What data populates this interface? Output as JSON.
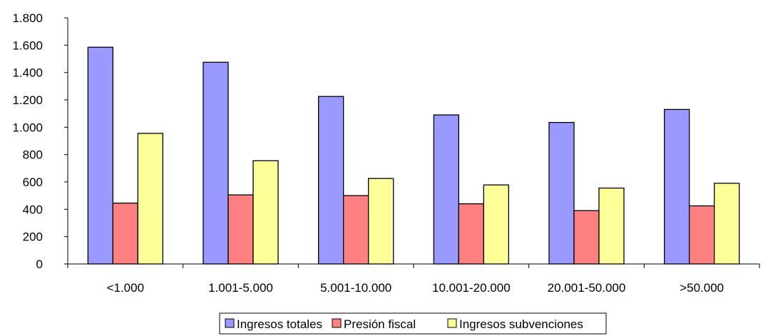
{
  "chart_data": {
    "type": "bar",
    "categories": [
      "<1.000",
      "1.001-5.000",
      "5.001-10.000",
      "10.001-20.000",
      "20.001-50.000",
      ">50.000"
    ],
    "series": [
      {
        "name": "Ingresos totales",
        "color": "#9999ff",
        "values": [
          1585,
          1475,
          1225,
          1090,
          1035,
          1130
        ]
      },
      {
        "name": "Presión fiscal",
        "color": "#ff8080",
        "values": [
          445,
          505,
          500,
          440,
          390,
          425
        ]
      },
      {
        "name": "Ingresos subvenciones",
        "color": "#ffff99",
        "values": [
          955,
          755,
          625,
          578,
          555,
          590
        ]
      }
    ],
    "ylim": [
      0,
      1800
    ],
    "yticks": [
      0,
      200,
      400,
      600,
      800,
      1000,
      1200,
      1400,
      1600,
      1800
    ],
    "ytick_labels": [
      "0",
      "200",
      "400",
      "600",
      "800",
      "1.000",
      "1.200",
      "1.400",
      "1.600",
      "1.800"
    ],
    "grid": false,
    "legend_position": "bottom-center"
  }
}
